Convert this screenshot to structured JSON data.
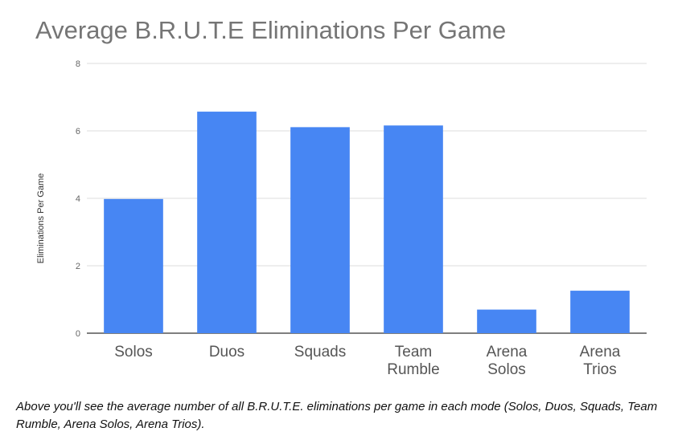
{
  "chart_data": {
    "type": "bar",
    "title": "Average B.R.U.T.E Eliminations Per Game",
    "xlabel": "",
    "ylabel": "Eliminations Per Game",
    "ylim": [
      0,
      8
    ],
    "yticks": [
      0,
      2,
      4,
      6,
      8
    ],
    "grid": true,
    "categories": [
      [
        "Solos"
      ],
      [
        "Duos"
      ],
      [
        "Squads"
      ],
      [
        "Team",
        "Rumble"
      ],
      [
        "Arena",
        "Solos"
      ],
      [
        "Arena",
        "Trios"
      ]
    ],
    "values": [
      3.98,
      6.57,
      6.11,
      6.16,
      0.7,
      1.26
    ],
    "colors": {
      "bar": "#4786f3",
      "grid": "#dddddd",
      "baseline": "#333333"
    }
  },
  "caption": "Above you'll see the average number of all B.R.U.T.E. eliminations per game in each mode (Solos, Duos, Squads, Team Rumble, Arena Solos, Arena Trios)."
}
